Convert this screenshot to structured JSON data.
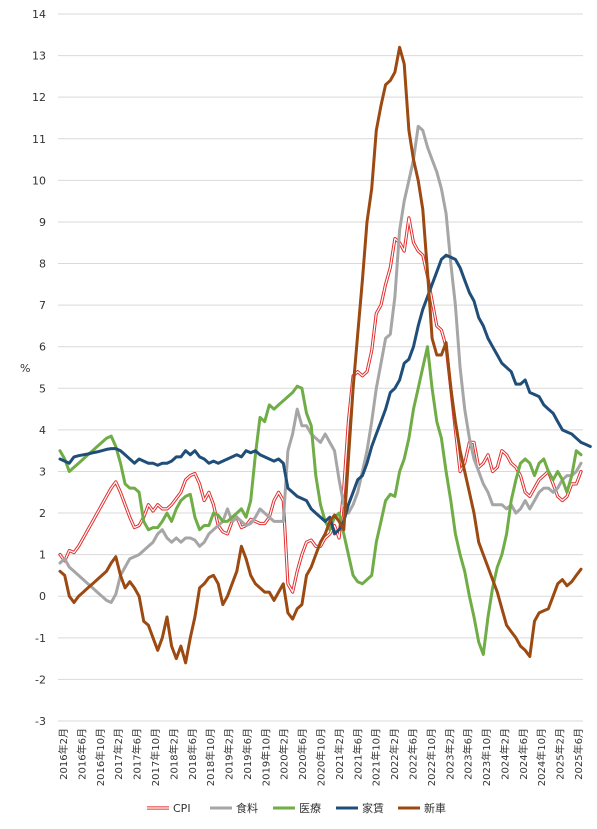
{
  "chart_data": {
    "type": "line",
    "ylabel": "%",
    "ylim": [
      -3,
      14
    ],
    "yticks": [
      -3,
      -2,
      -1,
      0,
      1,
      2,
      3,
      4,
      5,
      6,
      7,
      8,
      9,
      10,
      11,
      12,
      13,
      14
    ],
    "grid": true,
    "legend_position": "bottom",
    "x_tick_labels": [
      "2016年2月",
      "2016年6月",
      "2016年10月",
      "2017年2月",
      "2017年6月",
      "2017年10月",
      "2018年2月",
      "2018年6月",
      "2018年10月",
      "2019年2月",
      "2019年6月",
      "2019年10月",
      "2020年2月",
      "2020年6月",
      "2020年10月",
      "2021年2月",
      "2021年6月",
      "2021年10月",
      "2022年2月",
      "2022年6月",
      "2022年10月",
      "2023年2月",
      "2023年6月",
      "2023年10月",
      "2024年2月",
      "2024年6月",
      "2024年10月",
      "2025年2月",
      "2025年6月"
    ],
    "series": [
      {
        "name": "CPI",
        "color": "#e03030",
        "style": "double",
        "values": [
          1.0,
          0.85,
          1.1,
          1.05,
          1.2,
          1.4,
          1.6,
          1.8,
          2.0,
          2.2,
          2.4,
          2.6,
          2.75,
          2.5,
          2.2,
          1.9,
          1.65,
          1.7,
          1.9,
          2.2,
          2.05,
          2.2,
          2.1,
          2.1,
          2.2,
          2.35,
          2.5,
          2.8,
          2.9,
          2.95,
          2.7,
          2.3,
          2.5,
          2.2,
          1.7,
          1.55,
          1.5,
          1.8,
          1.9,
          1.65,
          1.7,
          1.85,
          1.8,
          1.75,
          1.75,
          1.9,
          2.3,
          2.5,
          2.3,
          0.3,
          0.1,
          0.6,
          1.0,
          1.3,
          1.35,
          1.2,
          1.2,
          1.4,
          1.5,
          1.7,
          1.4,
          2.6,
          4.2,
          5.3,
          5.4,
          5.3,
          5.4,
          5.9,
          6.8,
          7.0,
          7.5,
          7.9,
          8.6,
          8.5,
          8.3,
          9.1,
          8.5,
          8.3,
          8.2,
          7.7,
          7.1,
          6.5,
          6.4,
          6.0,
          5.0,
          4.0,
          3.0,
          3.2,
          3.7,
          3.7,
          3.1,
          3.2,
          3.4,
          3.0,
          3.1,
          3.5,
          3.4,
          3.2,
          3.1,
          2.9,
          2.5,
          2.4,
          2.6,
          2.8,
          2.9,
          3.0,
          2.7,
          2.4,
          2.3,
          2.4,
          2.7,
          2.7,
          3.0
        ]
      },
      {
        "name": "食料",
        "color": "#a6a6a6",
        "style": "solid",
        "values": [
          0.8,
          0.9,
          0.7,
          0.6,
          0.5,
          0.4,
          0.3,
          0.2,
          0.1,
          0.0,
          -0.1,
          -0.15,
          0.05,
          0.5,
          0.7,
          0.9,
          0.95,
          1.0,
          1.1,
          1.2,
          1.3,
          1.5,
          1.6,
          1.4,
          1.3,
          1.4,
          1.3,
          1.4,
          1.4,
          1.35,
          1.2,
          1.3,
          1.5,
          1.6,
          1.7,
          1.8,
          2.1,
          1.8,
          1.9,
          1.8,
          1.7,
          1.75,
          1.9,
          2.1,
          2.0,
          1.9,
          1.8,
          1.8,
          1.8,
          3.5,
          3.9,
          4.5,
          4.1,
          4.1,
          3.9,
          3.8,
          3.7,
          3.9,
          3.7,
          3.5,
          2.8,
          2.2,
          2.0,
          2.2,
          2.5,
          3.0,
          3.5,
          4.2,
          5.0,
          5.6,
          6.2,
          6.3,
          7.2,
          8.8,
          9.5,
          10.0,
          10.5,
          11.3,
          11.2,
          10.8,
          10.5,
          10.2,
          9.8,
          9.2,
          8.0,
          7.0,
          5.5,
          4.5,
          3.8,
          3.3,
          3.0,
          2.7,
          2.5,
          2.2,
          2.2,
          2.2,
          2.1,
          2.2,
          2.0,
          2.1,
          2.3,
          2.1,
          2.3,
          2.5,
          2.6,
          2.6,
          2.5,
          2.6,
          2.8,
          2.9,
          2.9,
          3.0,
          3.2
        ]
      },
      {
        "name": "医療",
        "color": "#70ad47",
        "style": "solid",
        "values": [
          3.5,
          3.3,
          3.0,
          3.1,
          3.2,
          3.3,
          3.4,
          3.5,
          3.6,
          3.7,
          3.8,
          3.85,
          3.6,
          3.2,
          2.7,
          2.6,
          2.6,
          2.5,
          1.8,
          1.6,
          1.65,
          1.65,
          1.8,
          2.0,
          1.8,
          2.1,
          2.3,
          2.4,
          2.45,
          1.9,
          1.6,
          1.7,
          1.7,
          2.0,
          1.95,
          1.8,
          1.8,
          1.9,
          2.0,
          2.1,
          1.9,
          2.3,
          3.4,
          4.3,
          4.2,
          4.6,
          4.5,
          4.6,
          4.7,
          4.8,
          4.9,
          5.05,
          5.0,
          4.4,
          4.1,
          2.9,
          2.2,
          1.8,
          1.6,
          1.9,
          2.0,
          1.5,
          1.0,
          0.5,
          0.35,
          0.3,
          0.4,
          0.5,
          1.3,
          1.8,
          2.3,
          2.45,
          2.4,
          3.0,
          3.3,
          3.8,
          4.5,
          5.0,
          5.5,
          6.0,
          5.0,
          4.2,
          3.8,
          3.0,
          2.3,
          1.5,
          1.0,
          0.6,
          0.0,
          -0.5,
          -1.1,
          -1.4,
          -0.5,
          0.2,
          0.7,
          1.0,
          1.5,
          2.3,
          2.8,
          3.2,
          3.3,
          3.2,
          2.9,
          3.2,
          3.3,
          3.0,
          2.8,
          3.0,
          2.8,
          2.5,
          2.9,
          3.5,
          3.4
        ]
      },
      {
        "name": "家賃",
        "color": "#1f4e79",
        "style": "solid",
        "values": [
          3.3,
          3.25,
          3.2,
          3.35,
          3.38,
          3.4,
          3.42,
          3.45,
          3.47,
          3.5,
          3.53,
          3.55,
          3.55,
          3.5,
          3.4,
          3.3,
          3.2,
          3.3,
          3.25,
          3.2,
          3.2,
          3.15,
          3.2,
          3.2,
          3.25,
          3.35,
          3.35,
          3.5,
          3.4,
          3.5,
          3.35,
          3.3,
          3.2,
          3.25,
          3.2,
          3.25,
          3.3,
          3.35,
          3.4,
          3.35,
          3.5,
          3.45,
          3.5,
          3.4,
          3.35,
          3.3,
          3.25,
          3.3,
          3.2,
          2.6,
          2.5,
          2.4,
          2.35,
          2.3,
          2.1,
          2.0,
          1.9,
          1.8,
          1.9,
          1.5,
          1.6,
          1.8,
          2.2,
          2.5,
          2.8,
          2.9,
          3.2,
          3.6,
          3.9,
          4.2,
          4.5,
          4.9,
          5.0,
          5.2,
          5.6,
          5.7,
          6.0,
          6.5,
          6.9,
          7.2,
          7.5,
          7.8,
          8.1,
          8.2,
          8.15,
          8.1,
          7.9,
          7.6,
          7.3,
          7.1,
          6.7,
          6.5,
          6.2,
          6.0,
          5.8,
          5.6,
          5.5,
          5.4,
          5.1,
          5.1,
          5.2,
          4.9,
          4.85,
          4.8,
          4.6,
          4.5,
          4.4,
          4.2,
          4.0,
          3.95,
          3.9,
          3.8,
          3.7,
          3.65,
          3.6
        ]
      },
      {
        "name": "新車",
        "color": "#9c4a12",
        "style": "solid",
        "values": [
          0.6,
          0.5,
          0.0,
          -0.15,
          0.0,
          0.1,
          0.2,
          0.3,
          0.4,
          0.5,
          0.6,
          0.8,
          0.95,
          0.5,
          0.2,
          0.35,
          0.2,
          0.0,
          -0.6,
          -0.7,
          -1.0,
          -1.3,
          -1.0,
          -0.5,
          -1.2,
          -1.5,
          -1.2,
          -1.6,
          -1.0,
          -0.5,
          0.2,
          0.3,
          0.45,
          0.5,
          0.3,
          -0.2,
          0.0,
          0.3,
          0.6,
          1.2,
          0.9,
          0.5,
          0.3,
          0.2,
          0.1,
          0.1,
          -0.1,
          0.1,
          0.3,
          -0.4,
          -0.55,
          -0.3,
          -0.2,
          0.5,
          0.7,
          1.0,
          1.3,
          1.5,
          1.8,
          1.95,
          1.8,
          1.6,
          3.3,
          5.0,
          6.3,
          7.6,
          9.0,
          9.8,
          11.2,
          11.8,
          12.3,
          12.4,
          12.6,
          13.2,
          12.8,
          11.2,
          10.5,
          10.0,
          9.3,
          7.8,
          6.2,
          5.8,
          5.8,
          6.1,
          5.0,
          4.2,
          3.5,
          3.0,
          2.5,
          2.0,
          1.3,
          1.0,
          0.7,
          0.4,
          0.1,
          -0.3,
          -0.7,
          -0.85,
          -1.0,
          -1.2,
          -1.3,
          -1.45,
          -0.6,
          -0.4,
          -0.35,
          -0.3,
          0.0,
          0.3,
          0.4,
          0.25,
          0.35,
          0.5,
          0.65
        ]
      }
    ]
  }
}
